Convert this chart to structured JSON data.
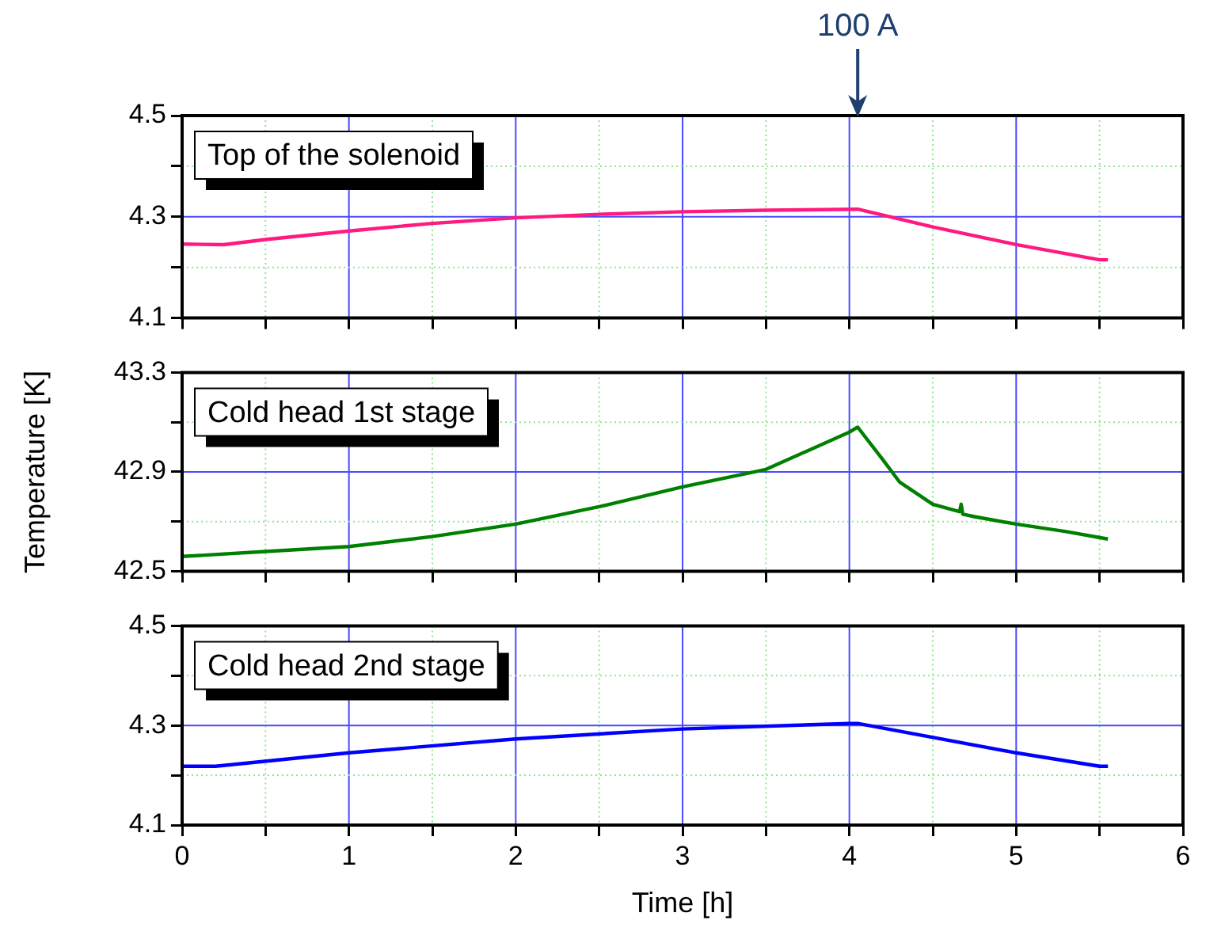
{
  "chart_data": [
    {
      "type": "line",
      "title": "Top of the solenoid",
      "x": [
        0,
        0.25,
        0.5,
        1,
        1.5,
        2,
        2.5,
        3,
        3.5,
        4.05,
        4.5,
        5,
        5.5,
        5.55
      ],
      "values": [
        4.246,
        4.245,
        4.255,
        4.272,
        4.287,
        4.298,
        4.305,
        4.31,
        4.313,
        4.315,
        4.28,
        4.245,
        4.215,
        4.215
      ],
      "color": "#ff1a80",
      "xlim": [
        0,
        6
      ],
      "xticks": [
        0,
        {
          "value": 0.5,
          "label": null
        },
        1,
        {
          "value": 1.5,
          "label": null
        },
        2,
        {
          "value": 2.5,
          "label": null
        },
        3,
        {
          "value": 3.5,
          "label": null
        },
        4,
        {
          "value": 4.5,
          "label": null
        },
        5,
        {
          "value": 5.5,
          "label": null
        },
        6
      ],
      "ylim": [
        4.1,
        4.5
      ],
      "yticks": [
        4.1,
        {
          "value": 4.2,
          "label": null
        },
        4.3,
        {
          "value": 4.4,
          "label": null
        },
        4.5
      ],
      "grid": true,
      "marker": "none",
      "tick_labels": "y",
      "annotations": [
        "100 A"
      ]
    },
    {
      "type": "line",
      "title": "Cold head 1st stage",
      "ylabel": "Temperature [K]",
      "x": [
        0,
        0.5,
        1,
        1.5,
        2,
        2.5,
        3,
        3.5,
        4,
        4.05,
        4.2,
        4.3,
        4.5,
        4.66,
        4.67,
        4.68,
        4.75,
        5,
        5.3,
        5.55
      ],
      "values": [
        42.56,
        42.58,
        42.6,
        42.64,
        42.69,
        42.76,
        42.84,
        42.91,
        43.06,
        43.08,
        42.95,
        42.86,
        42.77,
        42.74,
        42.77,
        42.73,
        42.72,
        42.69,
        42.66,
        42.63
      ],
      "color": "#008000",
      "xlim": [
        0,
        6
      ],
      "xticks": [
        0,
        {
          "value": 0.5,
          "label": null
        },
        1,
        {
          "value": 1.5,
          "label": null
        },
        2,
        {
          "value": 2.5,
          "label": null
        },
        3,
        {
          "value": 3.5,
          "label": null
        },
        4,
        {
          "value": 4.5,
          "label": null
        },
        5,
        {
          "value": 5.5,
          "label": null
        },
        6
      ],
      "ylim": [
        42.5,
        43.3
      ],
      "yticks": [
        42.5,
        {
          "value": 42.7,
          "label": null
        },
        42.9,
        {
          "value": 43.1,
          "label": null
        },
        43.3
      ],
      "grid": true,
      "marker": "none",
      "tick_labels": "y"
    },
    {
      "type": "line",
      "title": "Cold head 2nd stage",
      "xlabel": "Time [h]",
      "x": [
        0,
        0.2,
        1,
        2,
        3,
        4,
        4.05,
        5,
        5.5,
        5.55
      ],
      "values": [
        4.218,
        4.218,
        4.245,
        4.273,
        4.293,
        4.304,
        4.304,
        4.245,
        4.218,
        4.218
      ],
      "color": "#0000ff",
      "xlim": [
        0,
        6
      ],
      "xticks": [
        0,
        {
          "value": 0.5,
          "label": null
        },
        1,
        {
          "value": 1.5,
          "label": null
        },
        2,
        {
          "value": 2.5,
          "label": null
        },
        3,
        {
          "value": 3.5,
          "label": null
        },
        4,
        {
          "value": 4.5,
          "label": null
        },
        5,
        {
          "value": 5.5,
          "label": null
        },
        6
      ],
      "ylim": [
        4.1,
        4.5
      ],
      "yticks": [
        4.1,
        {
          "value": 4.2,
          "label": null
        },
        4.3,
        {
          "value": 4.4,
          "label": null
        },
        4.5
      ],
      "grid": true,
      "marker": "none"
    }
  ]
}
